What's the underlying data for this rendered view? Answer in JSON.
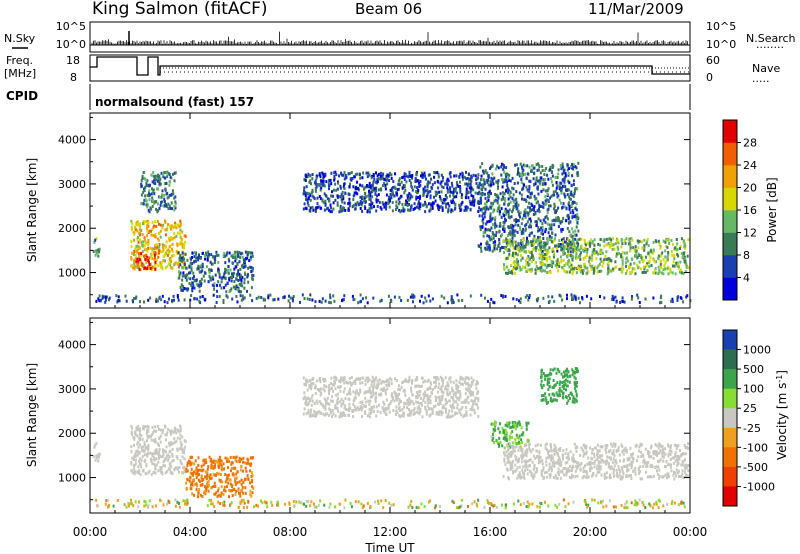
{
  "header": {
    "station": "King Salmon (fitACF)",
    "beam": "Beam 06",
    "date": "11/Mar/2009"
  },
  "left_labels": {
    "nsky": "N.Sky",
    "freq_line1": "Freq.",
    "freq_line2": "[MHz]",
    "cpid": "CPID"
  },
  "right_labels": {
    "nsearch": "N.Search",
    "nsearch_dots": "........",
    "nave": "Nave",
    "nave_dots": "....."
  },
  "noise_axis": {
    "left_ticks": [
      "10^5",
      "10^0"
    ],
    "right_ticks": [
      "10^5",
      "10^0"
    ]
  },
  "freq_axis": {
    "left_ticks": [
      "18",
      "8"
    ],
    "right_ticks": [
      "60",
      "0"
    ]
  },
  "cpid_text": "normalsound (fast) 157",
  "time_axis": {
    "label": "Time UT",
    "ticks": [
      "00:00",
      "04:00",
      "08:00",
      "12:00",
      "16:00",
      "20:00",
      "00:00"
    ]
  },
  "power_panel": {
    "ylabel": "Slant Range [km]",
    "yticks": [
      "1000",
      "2000",
      "3000",
      "4000"
    ],
    "cbar_label": "Power [dB]",
    "cbar_ticks": [
      "4",
      "8",
      "12",
      "16",
      "20",
      "24",
      "28"
    ],
    "cbar_colors": [
      "#0000dd",
      "#1a3fb0",
      "#3a7a55",
      "#66b866",
      "#d8d800",
      "#f0a000",
      "#f06000",
      "#e00000"
    ]
  },
  "velocity_panel": {
    "ylabel": "Slant Range [km]",
    "yticks": [
      "1000",
      "2000",
      "3000",
      "4000"
    ],
    "cbar_label": "Velocity [m s",
    "cbar_label_sup": "-1",
    "cbar_label_end": "]",
    "cbar_ticks": [
      "1000",
      "500",
      "100",
      "25",
      "-25",
      "-100",
      "-500",
      "-1000"
    ],
    "cbar_colors": [
      "#1a3fb0",
      "#2e6e50",
      "#3aa54a",
      "#88dd33",
      "#c8c8c0",
      "#f0a020",
      "#f07000",
      "#f04000",
      "#e00000"
    ]
  },
  "chart_data": [
    {
      "type": "heatmap",
      "title": "Power",
      "x_unit": "hours UT",
      "xlim": [
        0,
        24
      ],
      "ylim": [
        200,
        4600
      ],
      "xlabel": "",
      "ylabel": "Slant Range [km]",
      "colorbar": "Power [dB]",
      "regions": [
        {
          "x": [
            0.05,
            0.35
          ],
          "y": [
            1400,
            1800
          ],
          "value": 12
        },
        {
          "x": [
            1.6,
            3.8
          ],
          "y": [
            1100,
            2200
          ],
          "value": 20
        },
        {
          "x": [
            1.8,
            2.6
          ],
          "y": [
            1100,
            1500
          ],
          "value": 28
        },
        {
          "x": [
            2.0,
            3.4
          ],
          "y": [
            2400,
            3300
          ],
          "value": 10
        },
        {
          "x": [
            3.5,
            6.5
          ],
          "y": [
            600,
            1500
          ],
          "value": 8
        },
        {
          "x": [
            8.5,
            15.5
          ],
          "y": [
            2400,
            3300
          ],
          "value": 6
        },
        {
          "x": [
            15.5,
            19.5
          ],
          "y": [
            1500,
            3500
          ],
          "value": 8
        },
        {
          "x": [
            16.5,
            23.9
          ],
          "y": [
            1000,
            1800
          ],
          "value": 14
        }
      ]
    },
    {
      "type": "heatmap",
      "title": "Velocity",
      "x_unit": "hours UT",
      "xlim": [
        0,
        24
      ],
      "ylim": [
        200,
        4600
      ],
      "xlabel": "Time UT",
      "ylabel": "Slant Range [km]",
      "colorbar": "Velocity [m s-1]",
      "regions": [
        {
          "x": [
            0.05,
            0.35
          ],
          "y": [
            1400,
            1800
          ],
          "value": 0
        },
        {
          "x": [
            1.6,
            3.8
          ],
          "y": [
            1100,
            2200
          ],
          "value": 0
        },
        {
          "x": [
            3.8,
            6.5
          ],
          "y": [
            600,
            1500
          ],
          "value": -150
        },
        {
          "x": [
            8.5,
            15.5
          ],
          "y": [
            2400,
            3300
          ],
          "value": 0
        },
        {
          "x": [
            16.0,
            17.5
          ],
          "y": [
            1700,
            2300
          ],
          "value": 120
        },
        {
          "x": [
            18.0,
            19.5
          ],
          "y": [
            2700,
            3500
          ],
          "value": 300
        },
        {
          "x": [
            16.5,
            23.9
          ],
          "y": [
            1000,
            1800
          ],
          "value": 0
        }
      ]
    }
  ]
}
